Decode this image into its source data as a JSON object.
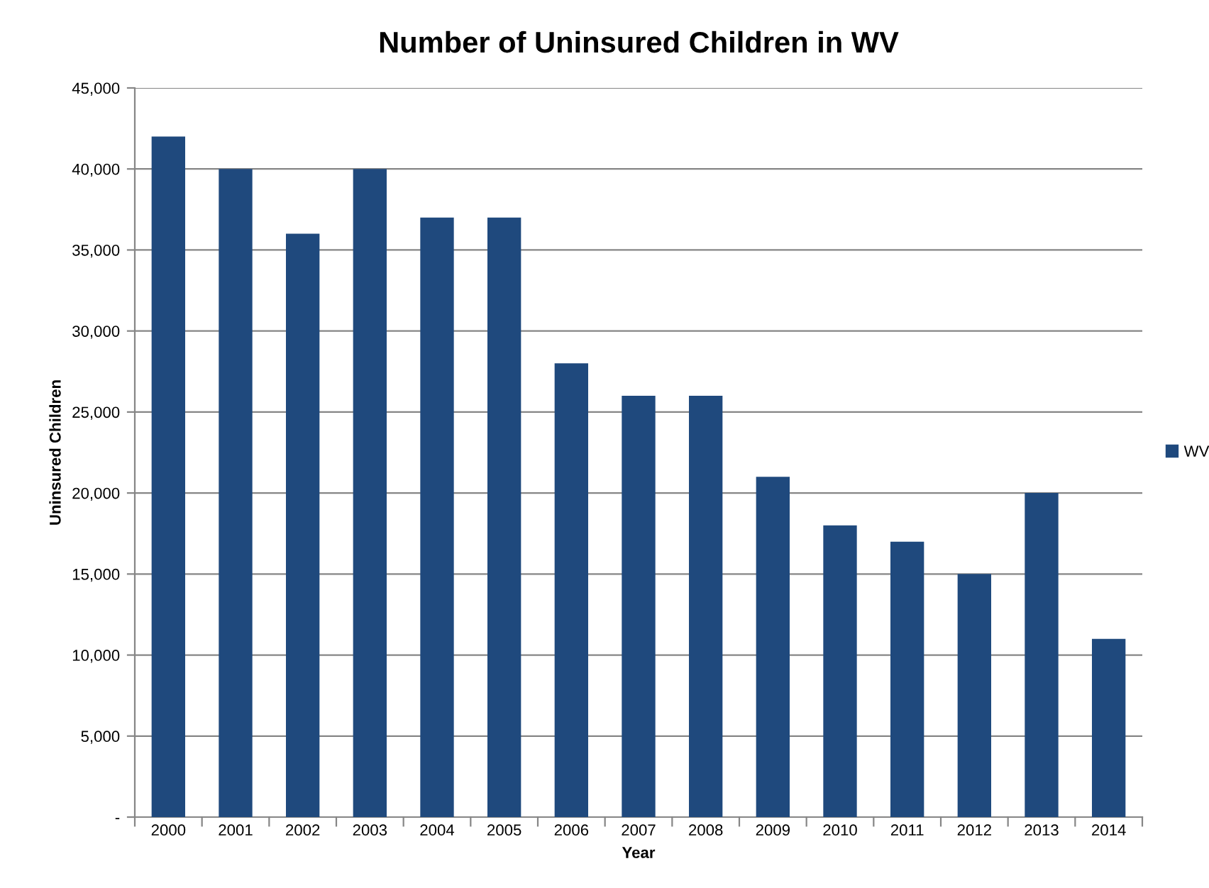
{
  "chart_data": {
    "type": "bar",
    "title": "Number of Uninsured Children in WV",
    "xlabel": "Year",
    "ylabel": "Uninsured Children",
    "categories": [
      "2000",
      "2001",
      "2002",
      "2003",
      "2004",
      "2005",
      "2006",
      "2007",
      "2008",
      "2009",
      "2010",
      "2011",
      "2012",
      "2013",
      "2014"
    ],
    "series": [
      {
        "name": "WV",
        "color": "#1f497d",
        "values": [
          42000,
          40000,
          36000,
          40000,
          37000,
          37000,
          28000,
          26000,
          26000,
          21000,
          18000,
          17000,
          15000,
          20000,
          11000
        ]
      }
    ],
    "ylim": [
      0,
      45000
    ],
    "yticks": [
      {
        "value": 0,
        "label": "-"
      },
      {
        "value": 5000,
        "label": "5,000"
      },
      {
        "value": 10000,
        "label": "10,000"
      },
      {
        "value": 15000,
        "label": "15,000"
      },
      {
        "value": 20000,
        "label": "20,000"
      },
      {
        "value": 25000,
        "label": "25,000"
      },
      {
        "value": 30000,
        "label": "30,000"
      },
      {
        "value": 35000,
        "label": "35,000"
      },
      {
        "value": 40000,
        "label": "40,000"
      },
      {
        "value": 45000,
        "label": "45,000"
      }
    ],
    "grid": "y",
    "legend": "right"
  }
}
